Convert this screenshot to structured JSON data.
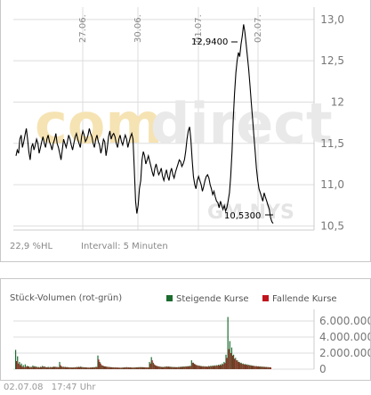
{
  "price_chart": {
    "watermark_brand_light": "com",
    "watermark_brand_dark": "direct",
    "watermark_ticker": "GM NYS",
    "stats_label": "22,9 %HL",
    "interval_label": "Intervall: 5 Minuten",
    "high_label": "12,9400",
    "low_label": "10,5300",
    "colors": {
      "line": "#000000",
      "grid": "#dcdcdc",
      "watermark": "#e8e8e8",
      "watermark_accent": "#f6e3b3"
    }
  },
  "volume_chart": {
    "title": "Stück-Volumen (rot-grün)",
    "legend_rising": "Steigende Kurse",
    "legend_falling": "Fallende Kurse",
    "colors": {
      "rising": "#1b6b2e",
      "falling": "#c0141c"
    }
  },
  "footer": {
    "date": "02.07.08",
    "time": "17:47 Uhr"
  },
  "chart_data": [
    {
      "type": "line",
      "x_ticks": [
        "27.06.",
        "30.06.",
        "01.07.",
        "02.07."
      ],
      "y_ticks": [
        "13,0",
        "12,5",
        "12",
        "11,5",
        "11,0",
        "10,5"
      ],
      "ylim": [
        10.45,
        13.15
      ],
      "grid": true,
      "annotations": [
        {
          "label": "12,9400",
          "value": 12.94
        },
        {
          "label": "10,5300",
          "value": 10.53
        }
      ],
      "series": [
        {
          "values": [
            11.35,
            11.42,
            11.38,
            11.55,
            11.6,
            11.45,
            11.52,
            11.6,
            11.68,
            11.55,
            11.4,
            11.3,
            11.45,
            11.5,
            11.42,
            11.48,
            11.55,
            11.5,
            11.38,
            11.45,
            11.52,
            11.58,
            11.5,
            11.45,
            11.55,
            11.6,
            11.52,
            11.48,
            11.42,
            11.5,
            11.55,
            11.62,
            11.5,
            11.45,
            11.38,
            11.3,
            11.42,
            11.55,
            11.5,
            11.45,
            11.52,
            11.6,
            11.55,
            11.48,
            11.42,
            11.5,
            11.58,
            11.62,
            11.55,
            11.5,
            11.45,
            11.58,
            11.65,
            11.6,
            11.52,
            11.55,
            11.6,
            11.68,
            11.62,
            11.58,
            11.5,
            11.45,
            11.55,
            11.6,
            11.52,
            11.48,
            11.38,
            11.45,
            11.55,
            11.52,
            11.35,
            11.45,
            11.58,
            11.65,
            11.55,
            11.6,
            11.62,
            11.58,
            11.5,
            11.45,
            11.55,
            11.6,
            11.52,
            11.48,
            11.55,
            11.6,
            11.55,
            11.45,
            11.52,
            11.58,
            11.62,
            11.55,
            11.2,
            10.8,
            10.65,
            10.75,
            10.95,
            11.05,
            11.3,
            11.4,
            11.35,
            11.25,
            11.3,
            11.35,
            11.28,
            11.22,
            11.15,
            11.1,
            11.2,
            11.25,
            11.18,
            11.12,
            11.15,
            11.2,
            11.1,
            11.05,
            11.12,
            11.18,
            11.1,
            11.05,
            11.15,
            11.2,
            11.12,
            11.08,
            11.15,
            11.2,
            11.25,
            11.3,
            11.28,
            11.22,
            11.25,
            11.3,
            11.4,
            11.55,
            11.65,
            11.7,
            11.55,
            11.3,
            11.1,
            11.0,
            10.95,
            11.05,
            11.1,
            11.05,
            11.0,
            10.92,
            10.98,
            11.05,
            11.1,
            11.12,
            11.08,
            11.0,
            10.95,
            10.88,
            10.92,
            10.85,
            10.8,
            10.78,
            10.72,
            10.8,
            10.75,
            10.7,
            10.75,
            10.68,
            10.72,
            10.8,
            10.9,
            11.1,
            11.4,
            11.8,
            12.1,
            12.35,
            12.5,
            12.6,
            12.55,
            12.7,
            12.8,
            12.94,
            12.85,
            12.7,
            12.55,
            12.4,
            12.2,
            12.0,
            11.8,
            11.6,
            11.4,
            11.2,
            11.05,
            10.95,
            10.9,
            10.85,
            10.8,
            10.9,
            10.85,
            10.8,
            10.75,
            10.7,
            10.6,
            10.55,
            10.53
          ]
        }
      ]
    },
    {
      "type": "bar",
      "y_ticks": [
        "6.000.000",
        "4.000.000",
        "2.000.000",
        "0"
      ],
      "ylim": [
        0,
        7000000
      ],
      "series": [
        {
          "name": "Steigende Kurse",
          "values": [
            2400000,
            1600000,
            900000,
            700000,
            500000,
            600000,
            400000,
            350000,
            300000,
            450000,
            380000,
            320000,
            280000,
            300000,
            400000,
            350000,
            250000,
            300000,
            280000,
            260000,
            320000,
            300000,
            280000,
            900000,
            350000,
            300000,
            280000,
            260000,
            240000,
            230000,
            220000,
            250000,
            280000,
            300000,
            320000,
            260000,
            240000,
            220000,
            200000,
            210000,
            230000,
            250000,
            300000,
            1700000,
            900000,
            500000,
            400000,
            350000,
            300000,
            280000,
            250000,
            230000,
            220000,
            210000,
            200000,
            190000,
            210000,
            240000,
            260000,
            230000,
            220000,
            200000,
            210000,
            230000,
            250000,
            270000,
            260000,
            240000,
            230000,
            220000,
            900000,
            1500000,
            800000,
            500000,
            400000,
            350000,
            300000,
            280000,
            320000,
            350000,
            330000,
            300000,
            280000,
            270000,
            260000,
            280000,
            300000,
            320000,
            340000,
            360000,
            380000,
            420000,
            1100000,
            800000,
            600000,
            500000,
            450000,
            400000,
            380000,
            360000,
            350000,
            400000,
            420000,
            450000,
            480000,
            500000,
            550000,
            600000,
            700000,
            900000,
            1800000,
            6500000,
            3500000,
            2700000,
            1800000,
            1400000,
            1100000,
            900000,
            800000,
            700000,
            650000,
            600000,
            550000,
            500000,
            450000,
            400000,
            380000,
            360000,
            340000,
            320000,
            300000,
            280000,
            260000,
            240000
          ]
        },
        {
          "name": "Fallende Kurse",
          "values": [
            1000000,
            700000,
            500000,
            300000,
            250000,
            300000,
            350000,
            200000,
            250000,
            300000,
            280000,
            220000,
            200000,
            260000,
            300000,
            280000,
            220000,
            200000,
            240000,
            260000,
            280000,
            250000,
            220000,
            500000,
            280000,
            260000,
            240000,
            220000,
            200000,
            190000,
            200000,
            220000,
            240000,
            250000,
            260000,
            230000,
            210000,
            200000,
            190000,
            200000,
            210000,
            230000,
            260000,
            1200000,
            700000,
            450000,
            350000,
            300000,
            260000,
            240000,
            220000,
            210000,
            200000,
            190000,
            180000,
            180000,
            190000,
            210000,
            220000,
            210000,
            200000,
            190000,
            200000,
            210000,
            220000,
            230000,
            230000,
            220000,
            210000,
            200000,
            700000,
            1100000,
            600000,
            420000,
            350000,
            300000,
            260000,
            250000,
            280000,
            300000,
            290000,
            270000,
            250000,
            240000,
            230000,
            250000,
            270000,
            290000,
            300000,
            320000,
            340000,
            380000,
            800000,
            650000,
            500000,
            420000,
            380000,
            340000,
            320000,
            310000,
            300000,
            340000,
            360000,
            380000,
            400000,
            430000,
            470000,
            500000,
            600000,
            750000,
            1400000,
            2500000,
            2000000,
            1700000,
            1300000,
            1100000,
            900000,
            750000,
            650000,
            580000,
            540000,
            500000,
            460000,
            420000,
            390000,
            360000,
            340000,
            320000,
            300000,
            280000,
            260000,
            250000,
            230000,
            210000
          ]
        }
      ]
    }
  ]
}
